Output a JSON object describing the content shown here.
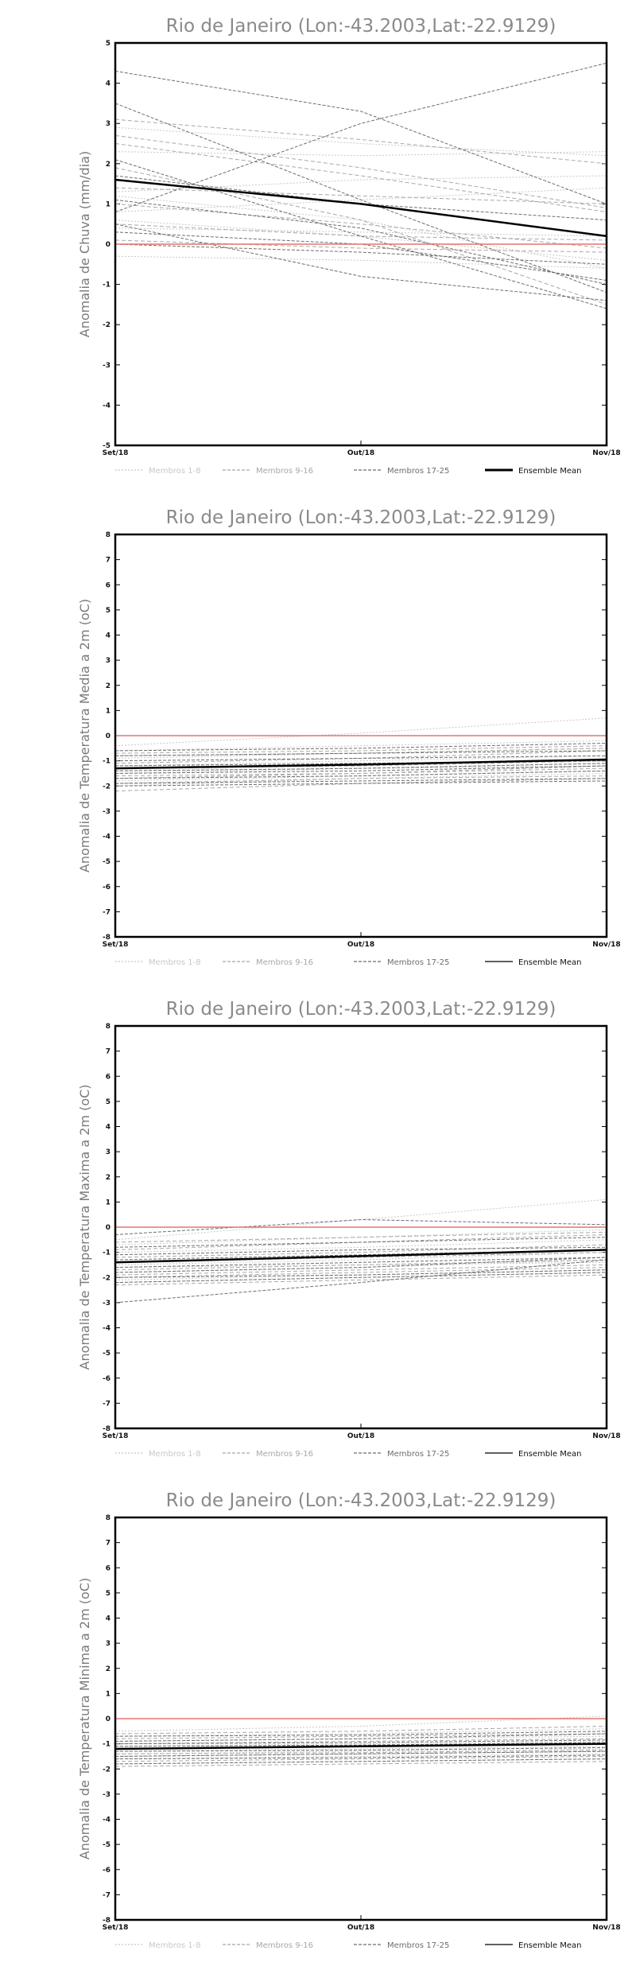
{
  "chart_data": [
    {
      "type": "line",
      "title": "Rio de Janeiro (Lon:-43.2003,Lat:-22.9129)",
      "ylabel": "Anomalia de Chuva (mm/dia)",
      "ylim": [
        -5,
        5
      ],
      "yticks": [
        -5,
        -4,
        -3,
        -2,
        -1,
        0,
        1,
        2,
        3,
        4,
        5
      ],
      "categories": [
        "Set/18",
        "Out/18",
        "Nov/18"
      ],
      "zero_line_color": "#e57373",
      "legend": [
        {
          "label": "Membros 1-8",
          "color": "#c8c8c8",
          "style": "dotted"
        },
        {
          "label": "Membros 9-16",
          "color": "#a8a8a8",
          "style": "dashed"
        },
        {
          "label": "Membros 17-25",
          "color": "#6e6e6e",
          "style": "dashed"
        },
        {
          "label": "Ensemble Mean",
          "color": "#000000",
          "style": "solid-bold"
        }
      ],
      "series": [
        {
          "group": 1,
          "values": [
            2.3,
            2.2,
            2.3
          ]
        },
        {
          "group": 1,
          "values": [
            1.3,
            1.6,
            1.7
          ]
        },
        {
          "group": 1,
          "values": [
            0.6,
            0.2,
            -0.4
          ]
        },
        {
          "group": 1,
          "values": [
            2.9,
            2.5,
            2.2
          ]
        },
        {
          "group": 1,
          "values": [
            0.4,
            0.3,
            0.2
          ]
        },
        {
          "group": 1,
          "values": [
            1.2,
            0.6,
            -0.6
          ]
        },
        {
          "group": 1,
          "values": [
            0.8,
            1.1,
            1.4
          ]
        },
        {
          "group": 1,
          "values": [
            -0.3,
            -0.4,
            -0.6
          ]
        },
        {
          "group": 2,
          "values": [
            2.5,
            1.7,
            0.8
          ]
        },
        {
          "group": 2,
          "values": [
            3.1,
            2.6,
            2.0
          ]
        },
        {
          "group": 2,
          "values": [
            1.9,
            0.6,
            -1.5
          ]
        },
        {
          "group": 2,
          "values": [
            0.5,
            0.2,
            0.1
          ]
        },
        {
          "group": 2,
          "values": [
            1.4,
            1.2,
            1.0
          ]
        },
        {
          "group": 2,
          "values": [
            0.1,
            -0.1,
            -0.2
          ]
        },
        {
          "group": 2,
          "values": [
            1.0,
            0.5,
            -0.1
          ]
        },
        {
          "group": 2,
          "values": [
            2.7,
            1.9,
            0.9
          ]
        },
        {
          "group": 3,
          "values": [
            4.3,
            3.3,
            1.0
          ]
        },
        {
          "group": 3,
          "values": [
            0.8,
            3.0,
            4.5
          ]
        },
        {
          "group": 3,
          "values": [
            3.5,
            1.1,
            -1.2
          ]
        },
        {
          "group": 3,
          "values": [
            2.1,
            0.2,
            -1.6
          ]
        },
        {
          "group": 3,
          "values": [
            0.5,
            -0.8,
            -1.4
          ]
        },
        {
          "group": 3,
          "values": [
            1.7,
            1.0,
            0.6
          ]
        },
        {
          "group": 3,
          "values": [
            0.3,
            0.0,
            -0.9
          ]
        },
        {
          "group": 3,
          "values": [
            1.1,
            0.4,
            -1.0
          ]
        },
        {
          "group": 3,
          "values": [
            0.0,
            -0.2,
            -0.5
          ]
        },
        {
          "group": 4,
          "values": [
            1.6,
            1.0,
            0.2
          ]
        }
      ]
    },
    {
      "type": "line",
      "title": "Rio de Janeiro (Lon:-43.2003,Lat:-22.9129)",
      "ylabel": "Anomalia de Temperatura Media a 2m (oC)",
      "ylim": [
        -8,
        8
      ],
      "yticks": [
        -8,
        -7,
        -6,
        -5,
        -4,
        -3,
        -2,
        -1,
        0,
        1,
        2,
        3,
        4,
        5,
        6,
        7,
        8
      ],
      "categories": [
        "Set/18",
        "Out/18",
        "Nov/18"
      ],
      "zero_line_color": "#e57373",
      "legend": [
        {
          "label": "Membros 1-8",
          "color": "#c8c8c8",
          "style": "dotted"
        },
        {
          "label": "Membros 9-16",
          "color": "#a8a8a8",
          "style": "dashed"
        },
        {
          "label": "Membros 17-25",
          "color": "#6e6e6e",
          "style": "dashed"
        },
        {
          "label": "Ensemble Mean",
          "color": "#000000",
          "style": "solid"
        }
      ],
      "series": [
        {
          "group": 1,
          "values": [
            -0.4,
            0.1,
            0.7
          ]
        },
        {
          "group": 1,
          "values": [
            -1.5,
            -1.3,
            -1.2
          ]
        },
        {
          "group": 1,
          "values": [
            -2.0,
            -1.7,
            -1.5
          ]
        },
        {
          "group": 1,
          "values": [
            -0.9,
            -0.7,
            -0.5
          ]
        },
        {
          "group": 1,
          "values": [
            -1.2,
            -1.0,
            -0.8
          ]
        },
        {
          "group": 1,
          "values": [
            -1.8,
            -1.6,
            -1.4
          ]
        },
        {
          "group": 1,
          "values": [
            -0.6,
            -0.4,
            -0.2
          ]
        },
        {
          "group": 1,
          "values": [
            -1.4,
            -1.3,
            -1.1
          ]
        },
        {
          "group": 2,
          "values": [
            -1.1,
            -0.9,
            -0.6
          ]
        },
        {
          "group": 2,
          "values": [
            -1.6,
            -1.5,
            -1.3
          ]
        },
        {
          "group": 2,
          "values": [
            -0.8,
            -0.7,
            -0.5
          ]
        },
        {
          "group": 2,
          "values": [
            -1.9,
            -1.7,
            -1.6
          ]
        },
        {
          "group": 2,
          "values": [
            -1.3,
            -1.2,
            -1.0
          ]
        },
        {
          "group": 2,
          "values": [
            -0.7,
            -0.6,
            -0.4
          ]
        },
        {
          "group": 2,
          "values": [
            -1.7,
            -1.5,
            -1.2
          ]
        },
        {
          "group": 2,
          "values": [
            -2.2,
            -1.9,
            -1.7
          ]
        },
        {
          "group": 3,
          "values": [
            -0.8,
            -0.7,
            -0.6
          ]
        },
        {
          "group": 3,
          "values": [
            -1.5,
            -1.4,
            -1.2
          ]
        },
        {
          "group": 3,
          "values": [
            -1.0,
            -0.9,
            -0.8
          ]
        },
        {
          "group": 3,
          "values": [
            -1.9,
            -1.8,
            -1.7
          ]
        },
        {
          "group": 3,
          "values": [
            -1.2,
            -1.1,
            -1.0
          ]
        },
        {
          "group": 3,
          "values": [
            -1.7,
            -1.6,
            -1.4
          ]
        },
        {
          "group": 3,
          "values": [
            -0.6,
            -0.5,
            -0.3
          ]
        },
        {
          "group": 3,
          "values": [
            -1.4,
            -1.3,
            -1.1
          ]
        },
        {
          "group": 3,
          "values": [
            -2.0,
            -1.9,
            -1.8
          ]
        },
        {
          "group": 4,
          "values": [
            -1.3,
            -1.15,
            -0.95
          ]
        }
      ]
    },
    {
      "type": "line",
      "title": "Rio de Janeiro (Lon:-43.2003,Lat:-22.9129)",
      "ylabel": "Anomalia de Temperatura Maxima a 2m (oC)",
      "ylim": [
        -8,
        8
      ],
      "yticks": [
        -8,
        -7,
        -6,
        -5,
        -4,
        -3,
        -2,
        -1,
        0,
        1,
        2,
        3,
        4,
        5,
        6,
        7,
        8
      ],
      "categories": [
        "Set/18",
        "Out/18",
        "Nov/18"
      ],
      "zero_line_color": "#e57373",
      "legend": [
        {
          "label": "Membros 1-8",
          "color": "#c8c8c8",
          "style": "dotted"
        },
        {
          "label": "Membros 9-16",
          "color": "#a8a8a8",
          "style": "dashed"
        },
        {
          "label": "Membros 17-25",
          "color": "#6e6e6e",
          "style": "dashed"
        },
        {
          "label": "Ensemble Mean",
          "color": "#000000",
          "style": "solid"
        }
      ],
      "series": [
        {
          "group": 1,
          "values": [
            -0.5,
            0.3,
            1.1
          ]
        },
        {
          "group": 1,
          "values": [
            -1.8,
            -1.6,
            -1.3
          ]
        },
        {
          "group": 1,
          "values": [
            -2.2,
            -2.0,
            -1.8
          ]
        },
        {
          "group": 1,
          "values": [
            -1.0,
            -0.8,
            -0.5
          ]
        },
        {
          "group": 1,
          "values": [
            -1.5,
            -1.3,
            -1.0
          ]
        },
        {
          "group": 1,
          "values": [
            -2.1,
            -1.9,
            -1.7
          ]
        },
        {
          "group": 1,
          "values": [
            -0.7,
            -0.4,
            -0.1
          ]
        },
        {
          "group": 1,
          "values": [
            -1.6,
            -1.5,
            -1.4
          ]
        },
        {
          "group": 2,
          "values": [
            -1.2,
            -1.0,
            -0.7
          ]
        },
        {
          "group": 2,
          "values": [
            -1.9,
            -1.7,
            -1.5
          ]
        },
        {
          "group": 2,
          "values": [
            -0.9,
            -0.6,
            -0.3
          ]
        },
        {
          "group": 2,
          "values": [
            -2.3,
            -2.1,
            -1.9
          ]
        },
        {
          "group": 2,
          "values": [
            -1.4,
            -1.2,
            -1.0
          ]
        },
        {
          "group": 2,
          "values": [
            -0.6,
            -0.4,
            -0.2
          ]
        },
        {
          "group": 2,
          "values": [
            -1.7,
            -1.5,
            -1.3
          ]
        },
        {
          "group": 2,
          "values": [
            -2.0,
            -1.8,
            -1.6
          ]
        },
        {
          "group": 3,
          "values": [
            -3.0,
            -2.2,
            -1.3
          ]
        },
        {
          "group": 3,
          "values": [
            -0.3,
            0.3,
            0.1
          ]
        },
        {
          "group": 3,
          "values": [
            -1.1,
            -0.9,
            -0.8
          ]
        },
        {
          "group": 3,
          "values": [
            -1.8,
            -1.6,
            -1.2
          ]
        },
        {
          "group": 3,
          "values": [
            -1.3,
            -1.1,
            -0.9
          ]
        },
        {
          "group": 3,
          "values": [
            -2.2,
            -2.0,
            -1.8
          ]
        },
        {
          "group": 3,
          "values": [
            -0.8,
            -0.6,
            -0.4
          ]
        },
        {
          "group": 3,
          "values": [
            -1.6,
            -1.4,
            -1.2
          ]
        },
        {
          "group": 3,
          "values": [
            -2.0,
            -1.9,
            -1.7
          ]
        },
        {
          "group": 4,
          "values": [
            -1.4,
            -1.15,
            -0.9
          ]
        }
      ]
    },
    {
      "type": "line",
      "title": "Rio de Janeiro (Lon:-43.2003,Lat:-22.9129)",
      "ylabel": "Anomalia de Temperatura Minima a 2m (oC)",
      "ylim": [
        -8,
        8
      ],
      "yticks": [
        -8,
        -7,
        -6,
        -5,
        -4,
        -3,
        -2,
        -1,
        0,
        1,
        2,
        3,
        4,
        5,
        6,
        7,
        8
      ],
      "categories": [
        "Set/18",
        "Out/18",
        "Nov/18"
      ],
      "zero_line_color": "#e57373",
      "legend": [
        {
          "label": "Membros 1-8",
          "color": "#c8c8c8",
          "style": "dotted"
        },
        {
          "label": "Membros 9-16",
          "color": "#a8a8a8",
          "style": "dashed"
        },
        {
          "label": "Membros 17-25",
          "color": "#6e6e6e",
          "style": "dashed"
        },
        {
          "label": "Ensemble Mean",
          "color": "#000000",
          "style": "solid"
        }
      ],
      "series": [
        {
          "group": 1,
          "values": [
            -0.5,
            -0.3,
            0.1
          ]
        },
        {
          "group": 1,
          "values": [
            -1.4,
            -1.3,
            -1.2
          ]
        },
        {
          "group": 1,
          "values": [
            -1.8,
            -1.7,
            -1.6
          ]
        },
        {
          "group": 1,
          "values": [
            -0.9,
            -0.8,
            -0.7
          ]
        },
        {
          "group": 1,
          "values": [
            -1.1,
            -1.0,
            -0.9
          ]
        },
        {
          "group": 1,
          "values": [
            -1.6,
            -1.5,
            -1.4
          ]
        },
        {
          "group": 1,
          "values": [
            -0.7,
            -0.6,
            -0.4
          ]
        },
        {
          "group": 1,
          "values": [
            -1.3,
            -1.2,
            -1.1
          ]
        },
        {
          "group": 2,
          "values": [
            -1.0,
            -0.9,
            -0.8
          ]
        },
        {
          "group": 2,
          "values": [
            -1.5,
            -1.4,
            -1.3
          ]
        },
        {
          "group": 2,
          "values": [
            -0.8,
            -0.7,
            -0.6
          ]
        },
        {
          "group": 2,
          "values": [
            -1.7,
            -1.6,
            -1.5
          ]
        },
        {
          "group": 2,
          "values": [
            -1.2,
            -1.1,
            -1.0
          ]
        },
        {
          "group": 2,
          "values": [
            -0.6,
            -0.5,
            -0.3
          ]
        },
        {
          "group": 2,
          "values": [
            -1.4,
            -1.35,
            -1.25
          ]
        },
        {
          "group": 2,
          "values": [
            -1.9,
            -1.8,
            -1.7
          ]
        },
        {
          "group": 3,
          "values": [
            -0.9,
            -0.8,
            -0.6
          ]
        },
        {
          "group": 3,
          "values": [
            -1.3,
            -1.25,
            -1.15
          ]
        },
        {
          "group": 3,
          "values": [
            -1.0,
            -0.95,
            -0.85
          ]
        },
        {
          "group": 3,
          "values": [
            -1.6,
            -1.55,
            -1.45
          ]
        },
        {
          "group": 3,
          "values": [
            -1.2,
            -1.1,
            -1.0
          ]
        },
        {
          "group": 3,
          "values": [
            -1.5,
            -1.4,
            -1.3
          ]
        },
        {
          "group": 3,
          "values": [
            -0.7,
            -0.65,
            -0.5
          ]
        },
        {
          "group": 3,
          "values": [
            -1.1,
            -1.05,
            -0.95
          ]
        },
        {
          "group": 3,
          "values": [
            -1.8,
            -1.7,
            -1.6
          ]
        },
        {
          "group": 4,
          "values": [
            -1.2,
            -1.1,
            -1.0
          ]
        }
      ]
    }
  ]
}
